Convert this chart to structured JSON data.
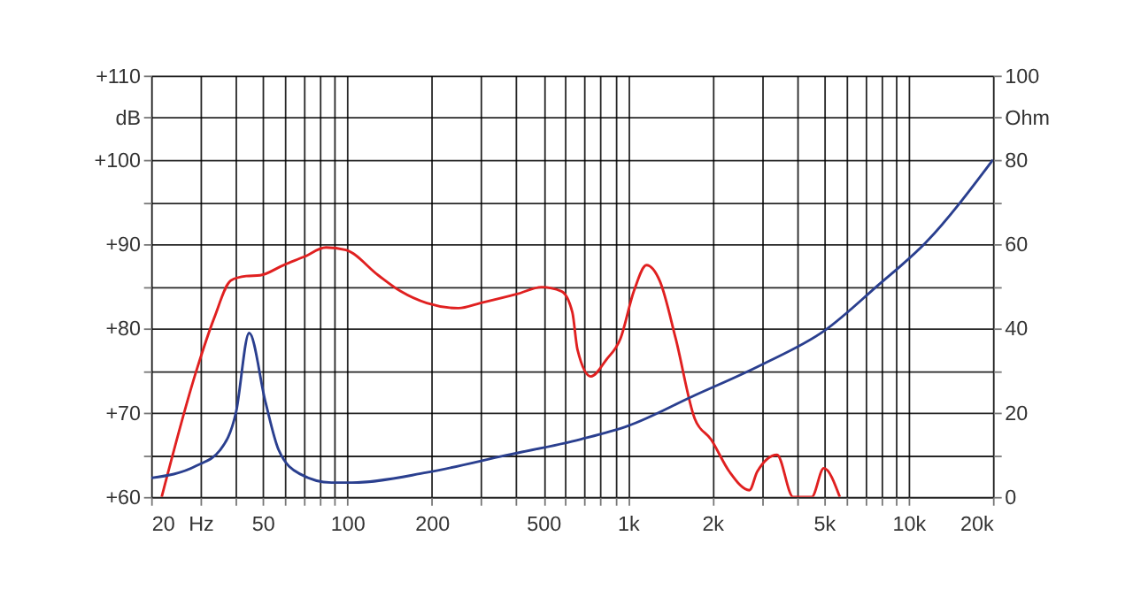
{
  "chart_data": {
    "type": "line",
    "log": "x",
    "grid": true,
    "marker": "none",
    "line_style": "solid",
    "xlim": [
      20,
      20000
    ],
    "xticks": [
      20,
      {
        "value": 30,
        "label": "Hz"
      },
      {
        "value": 40,
        "label": null
      },
      50,
      {
        "value": 60,
        "label": null
      },
      {
        "value": 70,
        "label": null
      },
      {
        "value": 80,
        "label": null
      },
      {
        "value": 90,
        "label": null
      },
      100,
      200,
      {
        "value": 300,
        "label": null
      },
      {
        "value": 400,
        "label": null
      },
      500,
      {
        "value": 600,
        "label": null
      },
      {
        "value": 700,
        "label": null
      },
      {
        "value": 800,
        "label": null
      },
      {
        "value": 900,
        "label": null
      },
      {
        "value": 1000,
        "label": "1k"
      },
      {
        "value": 2000,
        "label": "2k"
      },
      {
        "value": 3000,
        "label": null
      },
      {
        "value": 4000,
        "label": null
      },
      {
        "value": 5000,
        "label": "5k"
      },
      {
        "value": 6000,
        "label": null
      },
      {
        "value": 7000,
        "label": null
      },
      {
        "value": 8000,
        "label": null
      },
      {
        "value": 9000,
        "label": null
      },
      {
        "value": 10000,
        "label": "10k"
      },
      {
        "value": 20000,
        "label": "20k"
      }
    ],
    "ylim": [
      60,
      110
    ],
    "yticks": [
      {
        "value": 60,
        "label": "+60"
      },
      {
        "value": 65,
        "label": null
      },
      {
        "value": 70,
        "label": "+70"
      },
      {
        "value": 75,
        "label": null
      },
      {
        "value": 80,
        "label": "+80"
      },
      {
        "value": 85,
        "label": null
      },
      {
        "value": 90,
        "label": "+90"
      },
      {
        "value": 95,
        "label": null
      },
      {
        "value": 100,
        "label": "+100"
      },
      {
        "value": 105,
        "label": "dB"
      },
      {
        "value": 110,
        "label": "+110"
      }
    ],
    "y2lim": [
      0,
      100
    ],
    "y2ticks": [
      0,
      {
        "value": 10,
        "label": null
      },
      20,
      {
        "value": 30,
        "label": null
      },
      40,
      {
        "value": 50,
        "label": null
      },
      60,
      {
        "value": 70,
        "label": null
      },
      80,
      {
        "value": 90,
        "label": "Ohm"
      },
      100
    ],
    "series": [
      {
        "color": "#e02020",
        "x": [
          21.8,
          29,
          33.6,
          38.5,
          43.6,
          48.9,
          59.2,
          70.2,
          84,
          98.9,
          129,
          155,
          192,
          249,
          298,
          405,
          492,
          580,
          634,
          661,
          738,
          838,
          941,
          1050,
          1165,
          1300,
          1480,
          1730,
          1980,
          2300,
          2710,
          2890,
          3400,
          3880,
          4520,
          4990,
          5690
        ],
        "values": [
          60,
          75,
          81.3,
          85.7,
          86.2,
          86.3,
          87.5,
          88.5,
          89.6,
          89.3,
          86.3,
          84.4,
          83,
          82.4,
          83,
          84.1,
          84.9,
          84.4,
          81.9,
          77.5,
          74.3,
          76.3,
          78.8,
          84.4,
          87.5,
          85.6,
          78.8,
          69.3,
          66.8,
          63,
          60.8,
          63,
          65,
          60,
          60,
          63.4,
          60
        ]
      },
      {
        "color": "#2a3f8f",
        "axis": "y2",
        "x": [
          20,
          29,
          35.3,
          40.1,
          44.7,
          51.1,
          56.9,
          67.6,
          87.9,
          104,
          192,
          369,
          680,
          1003,
          1690,
          2980,
          5030,
          7780,
          11500,
          20000
        ],
        "values": [
          4.5,
          7.4,
          11.2,
          20,
          38.9,
          22.5,
          11.2,
          5.5,
          3.4,
          3.4,
          5.8,
          9.9,
          13.7,
          16.9,
          23.8,
          31.3,
          39.5,
          50.2,
          60.3,
          80
        ]
      }
    ]
  }
}
